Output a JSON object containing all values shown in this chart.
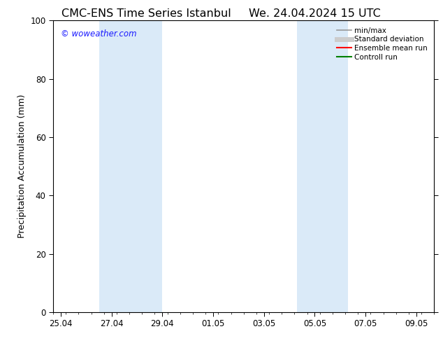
{
  "title_left": "CMC-ENS Time Series Istanbul",
  "title_right": "We. 24.04.2024 15 UTC",
  "ylabel": "Precipitation Accumulation (mm)",
  "ylim": [
    0,
    100
  ],
  "yticks": [
    0,
    20,
    40,
    60,
    80,
    100
  ],
  "x_tick_labels": [
    "25.04",
    "27.04",
    "29.04",
    "01.05",
    "03.05",
    "05.05",
    "07.05",
    "09.05"
  ],
  "x_tick_positions": [
    0,
    2,
    4,
    6,
    8,
    10,
    12,
    14
  ],
  "x_lim": [
    -0.3,
    14.7
  ],
  "shaded_regions": [
    {
      "x_start": 1.5,
      "x_end": 4.0,
      "color": "#daeaf8"
    },
    {
      "x_start": 9.3,
      "x_end": 11.3,
      "color": "#daeaf8"
    }
  ],
  "bg_color": "#ffffff",
  "watermark_text": "© woweather.com",
  "watermark_color": "#1a1aff",
  "legend_items": [
    {
      "label": "min/max",
      "color": "#999999",
      "lw": 1.2
    },
    {
      "label": "Standard deviation",
      "color": "#cccccc",
      "lw": 5
    },
    {
      "label": "Ensemble mean run",
      "color": "#ff0000",
      "lw": 1.5
    },
    {
      "label": "Controll run",
      "color": "#008000",
      "lw": 1.5
    }
  ],
  "title_fontsize": 11.5,
  "tick_fontsize": 8.5,
  "ylabel_fontsize": 9,
  "legend_fontsize": 7.5
}
